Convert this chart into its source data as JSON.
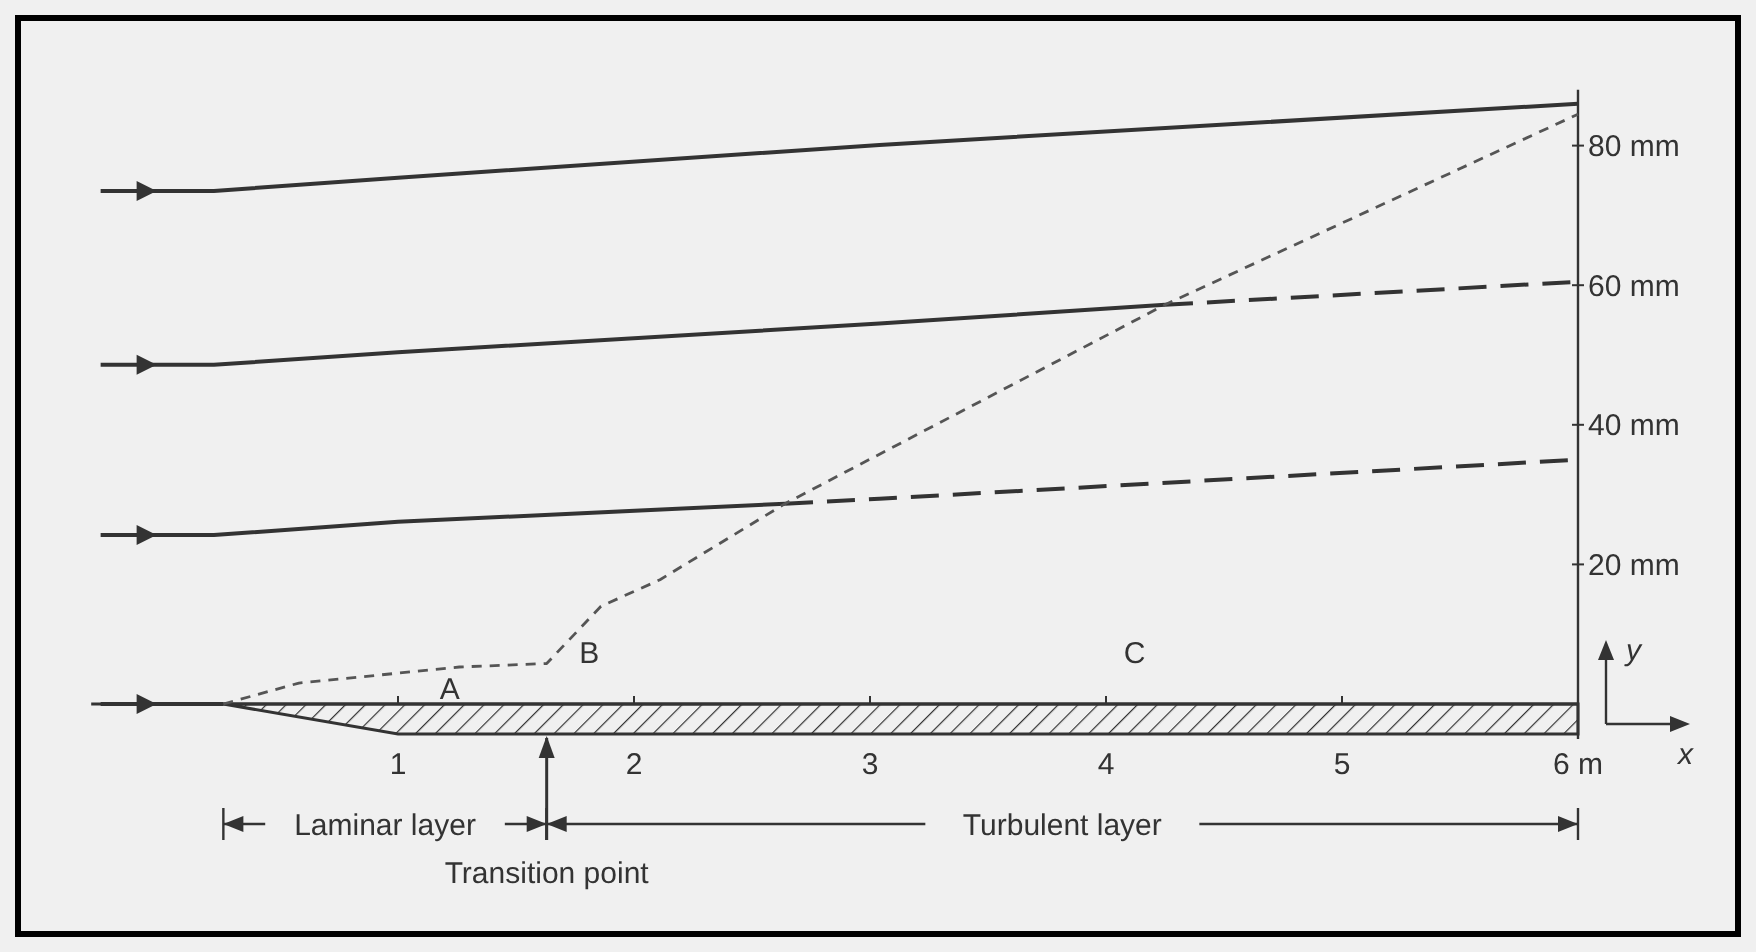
{
  "chart_data": {
    "type": "line",
    "xlabel": "x",
    "ylabel": "y",
    "xlim": [
      -0.3,
      6
    ],
    "ylim": [
      -5,
      88
    ],
    "xticks": [
      1,
      2,
      3,
      4,
      5,
      {
        "value": 6,
        "label": "6 m"
      }
    ],
    "yticks": [
      {
        "value": 20,
        "label": "20 mm"
      },
      {
        "value": 40,
        "label": "40 mm"
      },
      {
        "value": 60,
        "label": "60 mm"
      },
      {
        "value": 80,
        "label": "80 mm"
      }
    ],
    "series": [
      {
        "color": "#333333",
        "line_style": "solid",
        "x": [
          -0.26,
          0.22,
          1.0,
          3.04,
          6
        ],
        "values": [
          73.5,
          73.5,
          75.4,
          80.1,
          86
        ]
      },
      {
        "color": "#333333",
        "line_style": "solid",
        "x": [
          -0.26,
          0.22,
          1.0,
          3.04,
          4.25
        ],
        "values": [
          48.6,
          48.6,
          50.4,
          54.5,
          57.2
        ]
      },
      {
        "color": "#333333",
        "line_style": "dashed",
        "x": [
          4.25,
          6
        ],
        "values": [
          57.2,
          60.5
        ]
      },
      {
        "color": "#333333",
        "line_style": "solid",
        "x": [
          -0.26,
          0.22,
          1.0,
          2.64
        ],
        "values": [
          24.2,
          24.2,
          26.1,
          28.7
        ]
      },
      {
        "color": "#333333",
        "line_style": "dashed",
        "x": [
          2.64,
          3.04,
          6
        ],
        "values": [
          28.7,
          29.4,
          35
        ]
      },
      {
        "color": "#333333",
        "line_style": "solid",
        "x": [
          -0.26,
          0.26
        ],
        "values": [
          0,
          0
        ]
      },
      {
        "color": "#555555",
        "line_style": "dotted",
        "x": [
          0.26,
          0.58,
          1.26,
          1.63,
          1.86,
          2.11,
          2.64,
          4.25,
          6
        ],
        "values": [
          0,
          3.0,
          5.3,
          5.8,
          14,
          17.8,
          28.7,
          57.2,
          84.5
        ]
      }
    ],
    "ref_lines": [
      {
        "axis": "x",
        "value": 1.63,
        "label": "Transition point"
      }
    ],
    "annotations": [
      "A",
      "B",
      "C",
      "Laminar layer",
      "Turbulent layer"
    ]
  }
}
